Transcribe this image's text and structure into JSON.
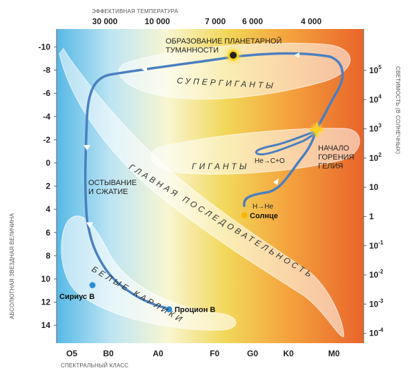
{
  "axes": {
    "top_title": "ЭФФЕКТИВНАЯ ТЕМПЕРАТУРА",
    "bottom_title": "СПЕКТРАЛЬНЫЙ КЛАСС",
    "left_title": "АБСОЛЮТНАЯ ЗВЕЗДНАЯ ВЕЛИЧИНА",
    "right_title": "СВЕТИМОСТЬ (В СОЛНЕЧНЫХ)",
    "top_ticks": [
      "30 000",
      "10 000",
      "7 000",
      "6 000",
      "4 000"
    ],
    "bottom_ticks": [
      "O5",
      "B0",
      "A0",
      "F0",
      "G0",
      "K0",
      "M0"
    ],
    "left_ticks": [
      "-10",
      "-8",
      "-6",
      "-4",
      "-2",
      "0",
      "2",
      "4",
      "6",
      "8",
      "10",
      "12",
      "14"
    ],
    "right_ticks": [
      {
        "base": "10",
        "exp": "5"
      },
      {
        "base": "10",
        "exp": "4"
      },
      {
        "base": "10",
        "exp": "3"
      },
      {
        "base": "10",
        "exp": "2"
      },
      {
        "base": "10",
        "exp": ""
      },
      {
        "base": "1",
        "exp": ""
      },
      {
        "base": "10",
        "exp": "-1"
      },
      {
        "base": "10",
        "exp": "-2"
      },
      {
        "base": "10",
        "exp": "-3"
      },
      {
        "base": "10",
        "exp": "-4"
      }
    ]
  },
  "regions": {
    "supergiants": "СУПЕРГИГАНТЫ",
    "giants": "ГИГАНТЫ",
    "main_sequence": "ГЛАВНАЯ ПОСЛЕДОВАТЕЛЬНОСТЬ",
    "white_dwarfs": "БЕЛЫЕ КАРЛИКИ"
  },
  "annotations": {
    "planetary_nebula_1": "ОБРАЗОВАНИЕ ПЛАНЕТАРНОЙ",
    "planetary_nebula_2": "ТУМАННОСТИ",
    "cooling_1": "ОСТЫВАНИЕ",
    "cooling_2": "И СЖАТИЕ",
    "helium_1": "НАЧАЛО",
    "helium_2": "ГОРЕНИЯ",
    "helium_3": "ГЕЛИЯ",
    "he_reaction": "He→C+O",
    "h_reaction": "H→He"
  },
  "stars": {
    "sun": "Солнце",
    "sirius_b": "Сириус В",
    "procyon_b": "Процион В"
  },
  "colors": {
    "track": "#4a7fc0",
    "sun": "#f5b800",
    "dwarf": "#2b8fd8",
    "gradient": [
      "#5bbde8",
      "#bfe6f2",
      "#f7f3c0",
      "#f3dc58",
      "#f5a640",
      "#ea6a2c"
    ]
  }
}
